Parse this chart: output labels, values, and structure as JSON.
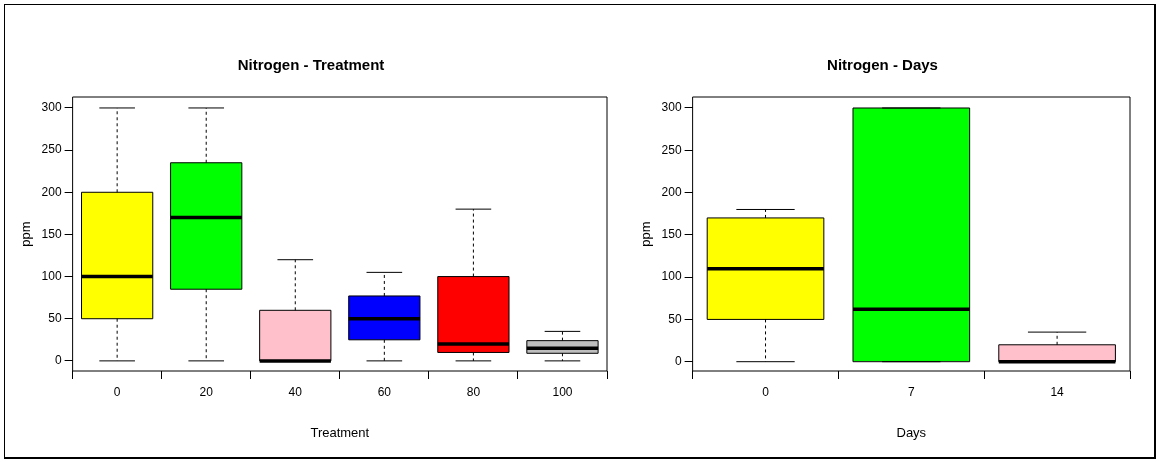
{
  "chart_data": [
    {
      "type": "box",
      "title": "Nitrogen - Treatment",
      "xlabel": "Treatment",
      "ylabel": "ppm",
      "categories": [
        "0",
        "20",
        "40",
        "60",
        "80",
        "100"
      ],
      "colors": [
        "#ffff00",
        "#00ff00",
        "#ffc0cb",
        "#0000ff",
        "#ff0000",
        "#bebebe"
      ],
      "boxes": [
        {
          "low": 0,
          "q1": 50,
          "median": 100,
          "q3": 200,
          "high": 300
        },
        {
          "low": 0,
          "q1": 85,
          "median": 170,
          "q3": 235,
          "high": 300
        },
        {
          "low": 0,
          "q1": 0,
          "median": 0,
          "q3": 60,
          "high": 120
        },
        {
          "low": 0,
          "q1": 25,
          "median": 50,
          "q3": 77,
          "high": 105
        },
        {
          "low": 0,
          "q1": 10,
          "median": 20,
          "q3": 100,
          "high": 180
        },
        {
          "low": 0,
          "q1": 9,
          "median": 15,
          "q3": 24,
          "high": 35
        }
      ],
      "ylim": [
        -12,
        313
      ],
      "yticks": [
        0,
        50,
        100,
        150,
        200,
        250,
        300
      ],
      "grid": false,
      "legend": false
    },
    {
      "type": "box",
      "title": "Nitrogen - Days",
      "xlabel": "Days",
      "ylabel": "ppm",
      "categories": [
        "0",
        "7",
        "14"
      ],
      "colors": [
        "#ffff00",
        "#00ff00",
        "#ffc0cb"
      ],
      "boxes": [
        {
          "low": 0,
          "q1": 50,
          "median": 110,
          "q3": 170,
          "high": 180
        },
        {
          "low": 0,
          "q1": 0,
          "median": 62,
          "q3": 300,
          "high": 300
        },
        {
          "low": 0,
          "q1": 0,
          "median": 0,
          "q3": 20,
          "high": 35
        }
      ],
      "ylim": [
        -11,
        313
      ],
      "yticks": [
        0,
        50,
        100,
        150,
        200,
        250,
        300
      ],
      "grid": false,
      "legend": false
    }
  ]
}
